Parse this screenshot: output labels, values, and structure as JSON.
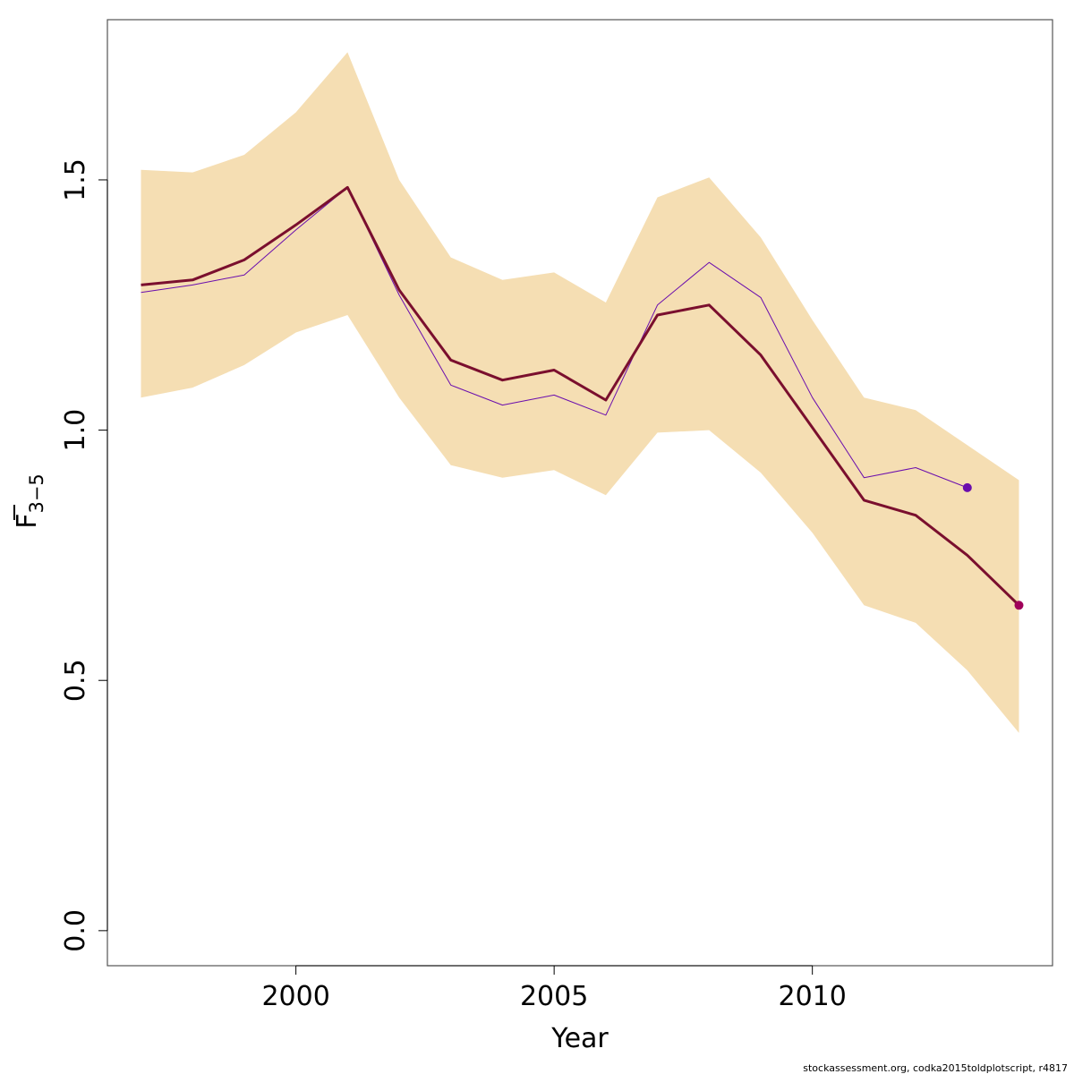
{
  "chart_data": {
    "type": "line",
    "xlabel": "Year",
    "ylabel_main": "F",
    "ylabel_subscript": "3−5",
    "xlim": [
      1996.35,
      2014.65
    ],
    "ylim": [
      -0.07,
      1.82
    ],
    "x_ticks": [
      2000,
      2005,
      2010
    ],
    "y_ticks": [
      0.0,
      0.5,
      1.0,
      1.5
    ],
    "x_tick_labels": [
      "2000",
      "2005",
      "2010"
    ],
    "y_tick_labels": [
      "0.0",
      "0.5",
      "1.0",
      "1.5"
    ],
    "years": [
      1997,
      1998,
      1999,
      2000,
      2001,
      2002,
      2003,
      2004,
      2005,
      2006,
      2007,
      2008,
      2009,
      2010,
      2011,
      2012,
      2013,
      2014
    ],
    "band": {
      "color": "#F5DEB3",
      "lower": [
        1.065,
        1.085,
        1.13,
        1.195,
        1.23,
        1.065,
        0.93,
        0.905,
        0.92,
        0.87,
        0.995,
        1.0,
        0.915,
        0.795,
        0.65,
        0.615,
        0.52,
        0.395
      ],
      "upper": [
        1.52,
        1.515,
        1.55,
        1.635,
        1.755,
        1.5,
        1.345,
        1.3,
        1.315,
        1.255,
        1.465,
        1.505,
        1.385,
        1.22,
        1.065,
        1.04,
        0.97,
        0.9
      ]
    },
    "series": [
      {
        "color": "#7a0f2e",
        "width": 3,
        "x": [
          1997,
          1998,
          1999,
          2000,
          2001,
          2002,
          2003,
          2004,
          2005,
          2006,
          2007,
          2008,
          2009,
          2010,
          2011,
          2012,
          2013,
          2014
        ],
        "values": [
          1.29,
          1.3,
          1.34,
          1.41,
          1.485,
          1.28,
          1.14,
          1.1,
          1.12,
          1.06,
          1.23,
          1.25,
          1.15,
          1.005,
          0.86,
          0.83,
          0.75,
          0.65
        ],
        "end_point_color": "#a0005a"
      },
      {
        "color": "#6a0dad",
        "width": 1,
        "x": [
          1997,
          1998,
          1999,
          2000,
          2001,
          2002,
          2003,
          2004,
          2005,
          2006,
          2007,
          2008,
          2009,
          2010,
          2011,
          2012,
          2013
        ],
        "values": [
          1.275,
          1.29,
          1.31,
          1.4,
          1.485,
          1.27,
          1.09,
          1.05,
          1.07,
          1.03,
          1.25,
          1.335,
          1.265,
          1.065,
          0.905,
          0.925,
          0.885
        ],
        "end_point_color": "#6a0dad"
      }
    ],
    "grid": false,
    "legend": "none"
  },
  "footer": {
    "credit": "stockassessment.org, codka2015toldplotscript, r4817"
  }
}
